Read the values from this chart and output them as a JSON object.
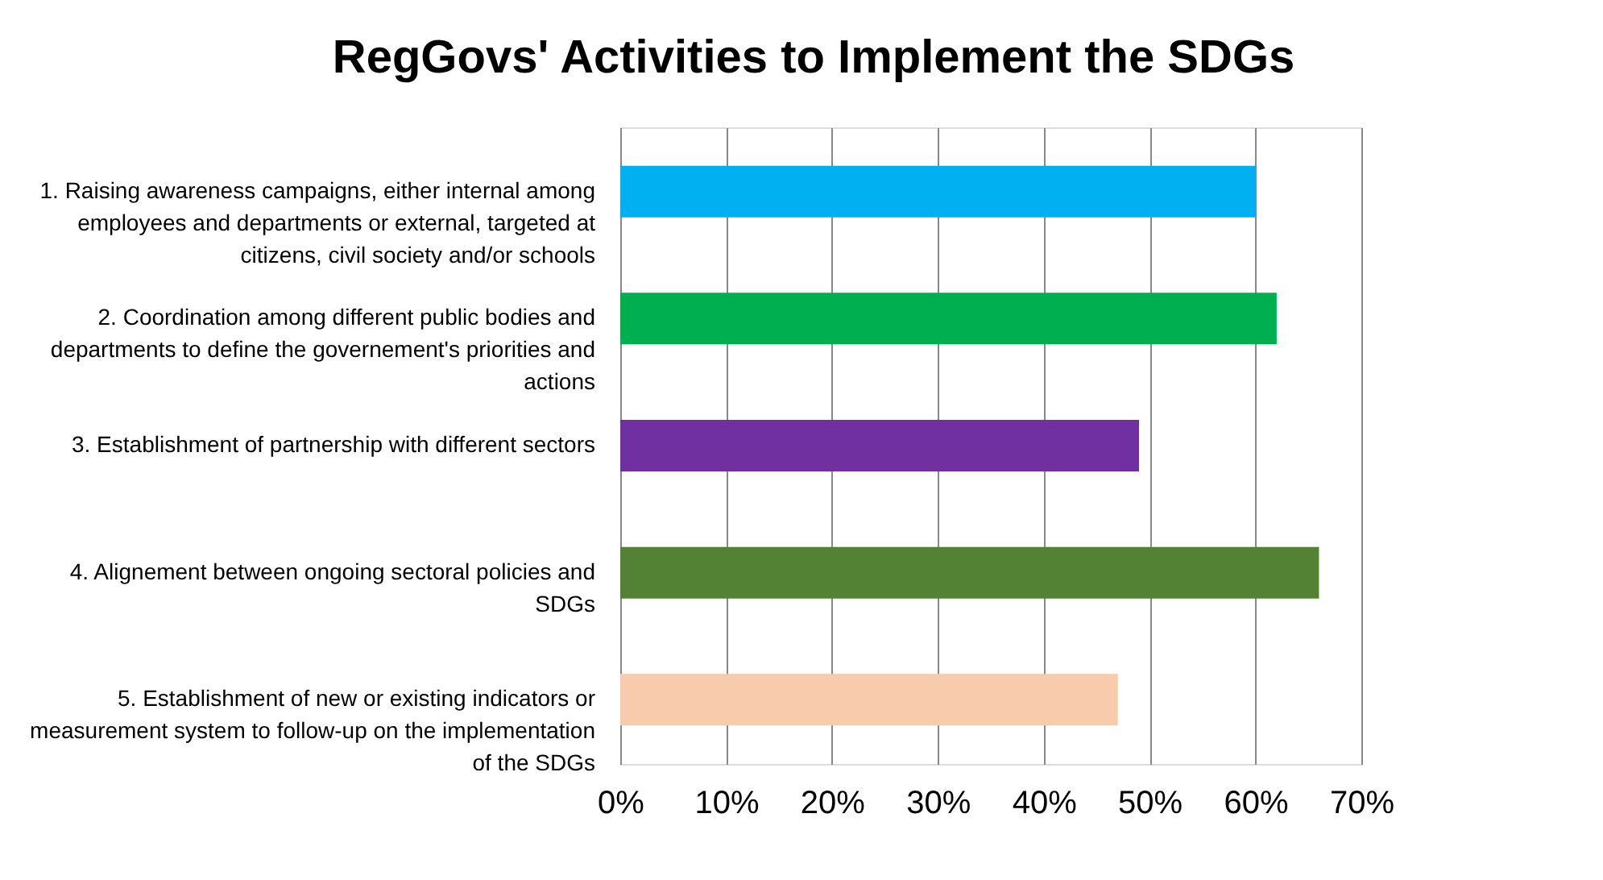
{
  "chart_data": {
    "type": "bar",
    "orientation": "horizontal",
    "title": "RegGovs' Activities to Implement the SDGs",
    "categories": [
      "1. Raising awareness campaigns, either internal among employees and departments or external, targeted at citizens, civil society and/or schools",
      "2. Coordination among different public bodies and departments to define the governement's priorities and actions",
      "3. Establishment of partnership with different sectors",
      "4. Alignement between ongoing sectoral policies and SDGs",
      "5. Establishment of new or existing indicators or measurement system to follow-up on the implementation of the SDGs"
    ],
    "values": [
      60,
      62,
      49,
      66,
      47
    ],
    "colors": [
      "#00b0f0",
      "#00b050",
      "#7030a0",
      "#548235",
      "#f8cbad"
    ],
    "xlim": [
      0,
      70
    ],
    "xticks": [
      {
        "value": 0,
        "label": "0%"
      },
      {
        "value": 10,
        "label": "10%"
      },
      {
        "value": 20,
        "label": "20%"
      },
      {
        "value": 30,
        "label": "30%"
      },
      {
        "value": 40,
        "label": "40%"
      },
      {
        "value": 50,
        "label": "50%"
      },
      {
        "value": 60,
        "label": "60%"
      },
      {
        "value": 70,
        "label": "70%"
      }
    ],
    "grid": "x",
    "legend": false
  }
}
